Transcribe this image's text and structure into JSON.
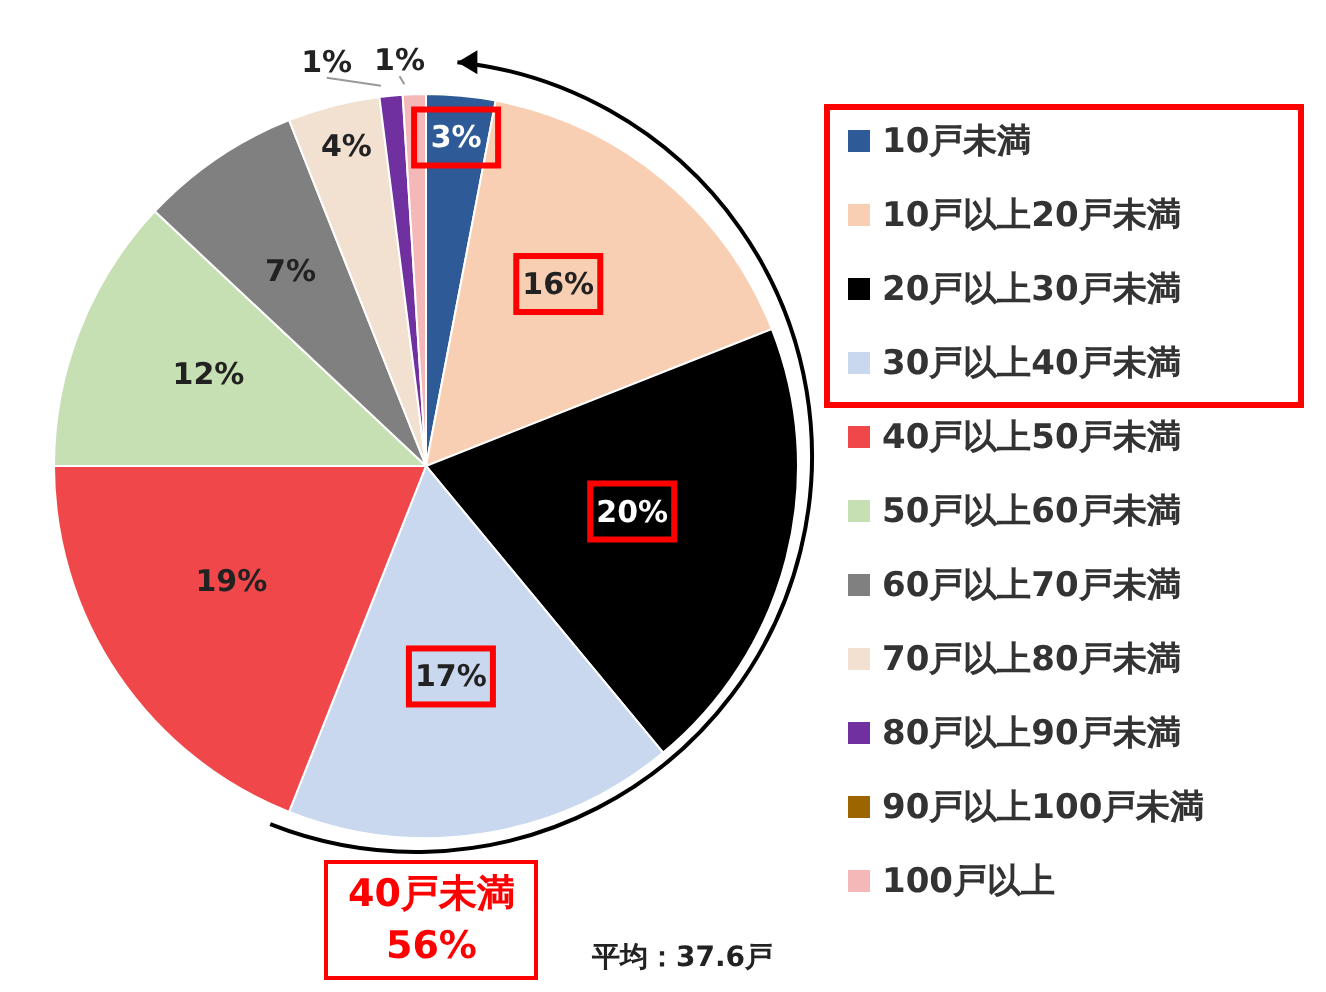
{
  "chart_data": {
    "type": "pie",
    "categories": [
      "10戸未満",
      "10戸以上20戸未満",
      "20戸以上30戸未満",
      "30戸以上40戸未満",
      "40戸以上50戸未満",
      "50戸以上60戸未満",
      "60戸以上70戸未満",
      "70戸以上80戸未満",
      "80戸以上90戸未満",
      "90戸以上100戸未満",
      "100戸以上"
    ],
    "values": [
      3,
      16,
      20,
      17,
      19,
      12,
      7,
      4,
      1,
      0,
      1
    ],
    "value_labels": [
      "3%",
      "16%",
      "20%",
      "17%",
      "19%",
      "12%",
      "7%",
      "4%",
      "1%",
      null,
      "1%"
    ],
    "colors": [
      "#2e5a97",
      "#f9cfb3",
      "#000000",
      "#c9d8ee",
      "#f0474a",
      "#c6e0b4",
      "#808080",
      "#f2e0d0",
      "#7030a0",
      "#9c6500",
      "#f4b8b8"
    ],
    "legend": "right",
    "annotations": [
      "40戸未満\n56%",
      "平均：37.6戸"
    ]
  }
}
